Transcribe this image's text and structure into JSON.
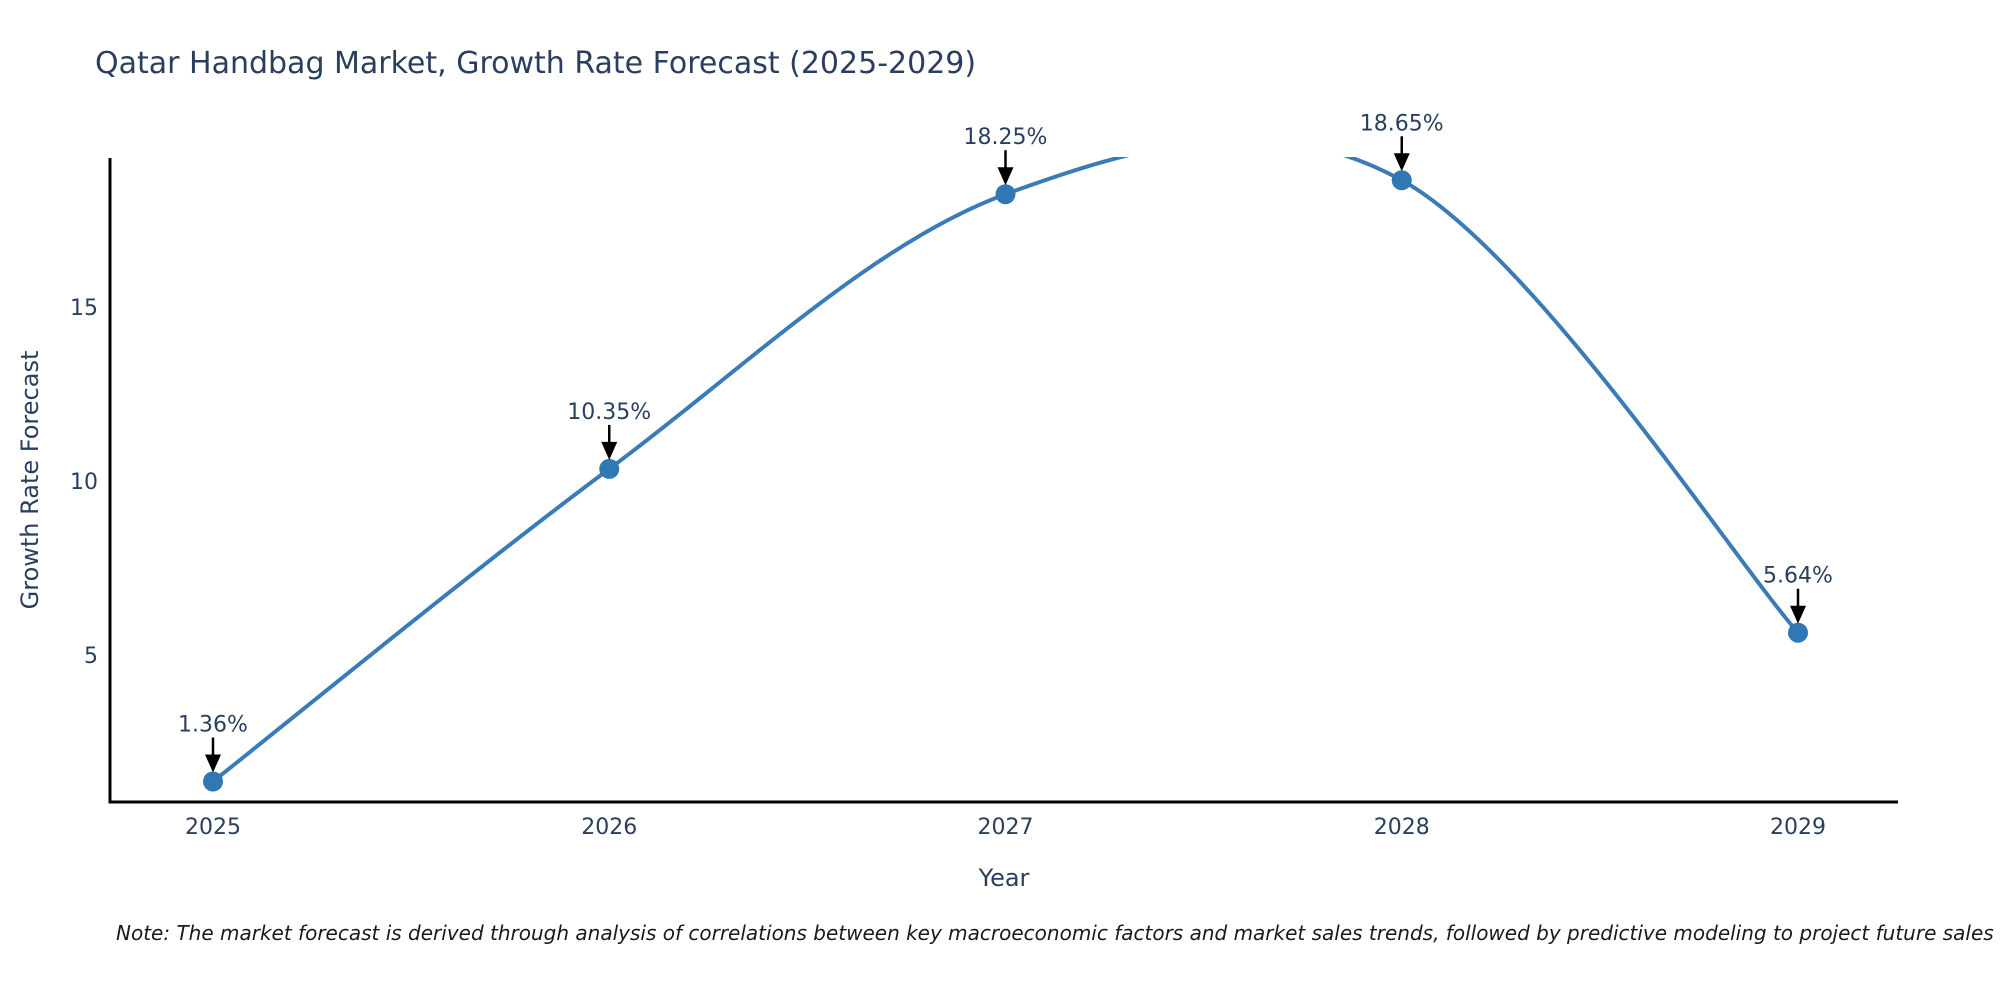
{
  "title": "Qatar Handbag Market, Growth Rate Forecast (2025-2029)",
  "note": "Note: The market forecast is derived through analysis of correlations between key macroeconomic factors and market sales trends, followed by predictive modeling to project future sales",
  "colors": {
    "line": "#3b7cb8",
    "marker": "#3077b4",
    "axis": "#000000",
    "text": "#2a3f5f",
    "annotation_arrow": "#000000",
    "note_text": "#1a1a1a",
    "background": "#ffffff"
  },
  "chart_data": {
    "type": "line",
    "title": "Qatar Handbag Market, Growth Rate Forecast (2025-2029)",
    "x": [
      2025,
      2026,
      2027,
      2028,
      2029
    ],
    "x_tick_labels": [
      "2025",
      "2026",
      "2027",
      "2028",
      "2029"
    ],
    "values": [
      1.36,
      10.35,
      18.25,
      18.65,
      5.64
    ],
    "point_labels": [
      "1.36%",
      "10.35%",
      "18.25%",
      "18.65%",
      "5.64%"
    ],
    "xlabel": "Year",
    "ylabel": "Growth Rate Forecast",
    "y_ticks": [
      5,
      10,
      15
    ],
    "ylim": [
      0.77,
      19.32
    ],
    "line_shape": "spline",
    "markers": true,
    "grid": false,
    "legend": "none",
    "annotations_have_arrows": true,
    "curve_clipped_at_plot_top": true
  }
}
